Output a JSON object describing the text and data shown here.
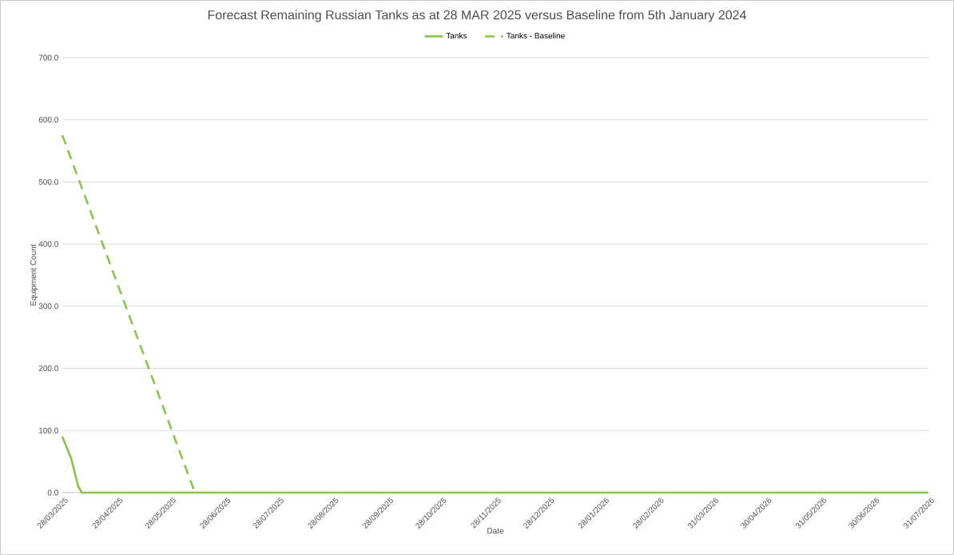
{
  "chart_data": {
    "type": "line",
    "title": "Forecast Remaining Russian Tanks as at 28 MAR 2025 versus Baseline from 5th January 2024",
    "xlabel": "Date",
    "ylabel": "Equipment Count",
    "series": [
      {
        "name": "Tanks",
        "color": "#8cc34f",
        "line_style": "solid",
        "x": [
          "2025-03-28",
          "2025-04-02",
          "2025-04-06",
          "2025-04-08",
          "2026-07-31"
        ],
        "values": [
          90,
          55,
          10,
          0,
          0
        ]
      },
      {
        "name": "Tanks - Baseline",
        "color": "#8cc34f",
        "line_style": "dashed",
        "x": [
          "2025-03-28",
          "2025-06-11"
        ],
        "values": [
          575,
          0
        ]
      }
    ],
    "xlim": [
      "2025-03-28",
      "2026-07-31"
    ],
    "xticks": [
      {
        "value": "2025-03-28",
        "label": "28/03/2025"
      },
      {
        "value": "2025-04-28",
        "label": "28/04/2025"
      },
      {
        "value": "2025-05-28",
        "label": "28/05/2025"
      },
      {
        "value": "2025-06-28",
        "label": "28/06/2025"
      },
      {
        "value": "2025-07-28",
        "label": "28/07/2025"
      },
      {
        "value": "2025-08-28",
        "label": "28/08/2025"
      },
      {
        "value": "2025-09-28",
        "label": "28/09/2025"
      },
      {
        "value": "2025-10-28",
        "label": "28/10/2025"
      },
      {
        "value": "2025-11-28",
        "label": "28/11/2025"
      },
      {
        "value": "2025-12-28",
        "label": "28/12/2025"
      },
      {
        "value": "2026-01-28",
        "label": "28/01/2026"
      },
      {
        "value": "2026-02-28",
        "label": "28/02/2026"
      },
      {
        "value": "2026-03-31",
        "label": "31/03/2026"
      },
      {
        "value": "2026-04-30",
        "label": "30/04/2026"
      },
      {
        "value": "2026-05-31",
        "label": "31/05/2026"
      },
      {
        "value": "2026-06-30",
        "label": "30/06/2026"
      },
      {
        "value": "2026-07-31",
        "label": "31/07/2026"
      }
    ],
    "ylim": [
      0,
      700
    ],
    "yticks": [
      {
        "value": 0,
        "label": "0.0"
      },
      {
        "value": 100,
        "label": "100.0"
      },
      {
        "value": 200,
        "label": "200.0"
      },
      {
        "value": 300,
        "label": "300.0"
      },
      {
        "value": 400,
        "label": "400.0"
      },
      {
        "value": 500,
        "label": "500.0"
      },
      {
        "value": 600,
        "label": "600.0"
      },
      {
        "value": 700,
        "label": "700.0"
      }
    ],
    "grid": "y",
    "legend": "top",
    "marker": "none"
  }
}
